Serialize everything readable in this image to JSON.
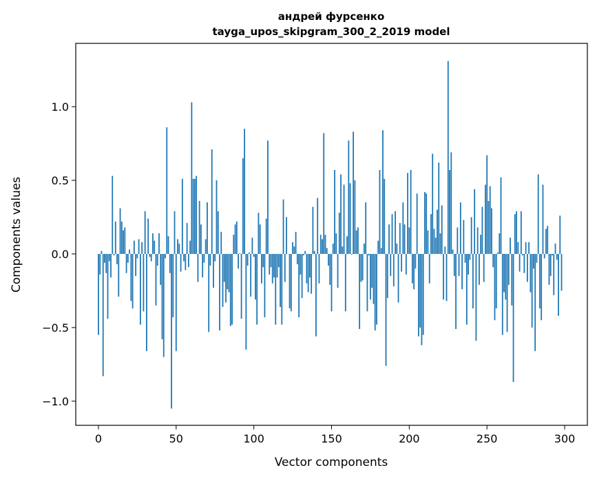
{
  "chart_data": {
    "type": "bar",
    "title": [
      "андрей фурсенко",
      "tayga_upos_skipgram_300_2_2019 model"
    ],
    "xlabel": "Vector components",
    "ylabel": "Components values",
    "xlim": [
      -14.6,
      314.6
    ],
    "ylim": [
      -1.164,
      1.43
    ],
    "xticks": [
      0,
      50,
      100,
      150,
      200,
      250,
      300
    ],
    "xtick_labels": [
      "0",
      "50",
      "100",
      "150",
      "200",
      "250",
      "300"
    ],
    "yticks": [
      -1.0,
      -0.5,
      0.0,
      0.5,
      1.0
    ],
    "ytick_labels": [
      "−1.0",
      "−0.5",
      "0.0",
      "0.5",
      "1.0"
    ],
    "grid": false,
    "color": "#1f77b4",
    "values": [
      -0.55,
      -0.14,
      0.02,
      -0.83,
      -0.06,
      -0.13,
      -0.44,
      -0.05,
      -0.16,
      0.53,
      -0.01,
      0.22,
      -0.07,
      -0.29,
      0.31,
      0.22,
      0.16,
      0.18,
      -0.13,
      -0.06,
      0.03,
      -0.32,
      -0.37,
      0.09,
      -0.15,
      -0.03,
      0.1,
      -0.48,
      0.08,
      -0.39,
      0.29,
      -0.66,
      0.24,
      -0.02,
      -0.05,
      0.14,
      0.09,
      -0.35,
      -0.08,
      0.14,
      -0.21,
      -0.58,
      -0.7,
      -0.03,
      0.86,
      0.12,
      -0.13,
      -1.05,
      -0.43,
      0.29,
      -0.66,
      0.1,
      0.07,
      -0.12,
      0.51,
      -0.05,
      -0.11,
      0.21,
      -0.09,
      0.09,
      1.03,
      0.51,
      0.51,
      0.53,
      -0.19,
      0.36,
      0.2,
      -0.16,
      -0.06,
      0.1,
      0.35,
      -0.53,
      -0.08,
      0.71,
      -0.23,
      -0.05,
      0.5,
      0.29,
      -0.52,
      0.15,
      -0.36,
      -0.19,
      -0.33,
      -0.24,
      -0.26,
      -0.49,
      -0.48,
      0.13,
      0.2,
      0.22,
      -0.1,
      0.005,
      -0.44,
      0.65,
      0.85,
      -0.65,
      -0.08,
      0.01,
      -0.29,
      0.11,
      -0.02,
      -0.31,
      -0.48,
      0.28,
      0.2,
      -0.2,
      -0.09,
      -0.43,
      0.24,
      0.77,
      -0.14,
      -0.09,
      -0.2,
      -0.16,
      -0.48,
      -0.16,
      -0.09,
      -0.36,
      -0.48,
      0.37,
      -0.19,
      0.25,
      0.0,
      -0.37,
      -0.39,
      0.08,
      0.05,
      0.15,
      -0.07,
      -0.43,
      -0.14,
      -0.3,
      -0.01,
      0.02,
      -0.2,
      -0.26,
      -0.16,
      -0.27,
      0.32,
      0.02,
      -0.56,
      0.38,
      -0.2,
      0.13,
      0.1,
      0.82,
      0.13,
      0.04,
      -0.08,
      -0.21,
      -0.39,
      0.07,
      0.57,
      0.14,
      -0.23,
      0.28,
      0.54,
      0.05,
      0.47,
      -0.39,
      0.12,
      0.77,
      0.48,
      -0.005,
      0.83,
      0.5,
      0.16,
      0.18,
      -0.51,
      -0.19,
      -0.18,
      0.07,
      0.35,
      -0.39,
      -0.01,
      -0.31,
      -0.23,
      -0.34,
      -0.52,
      -0.48,
      0.09,
      0.57,
      0.04,
      0.84,
      0.51,
      -0.76,
      -0.3,
      0.2,
      -0.15,
      0.27,
      -0.22,
      0.29,
      0.07,
      -0.33,
      0.21,
      -0.12,
      0.35,
      0.2,
      -0.14,
      0.55,
      0.18,
      0.57,
      -0.2,
      -0.24,
      -0.1,
      0.41,
      -0.56,
      -0.5,
      -0.62,
      -0.55,
      0.42,
      0.41,
      0.16,
      -0.2,
      0.27,
      0.68,
      0.17,
      0.11,
      0.3,
      0.62,
      0.14,
      0.33,
      -0.31,
      0.05,
      -0.32,
      1.31,
      0.57,
      0.69,
      0.03,
      -0.15,
      -0.51,
      0.18,
      -0.15,
      0.35,
      -0.24,
      0.23,
      -0.06,
      -0.48,
      -0.14,
      -0.04,
      0.25,
      -0.37,
      0.44,
      -0.59,
      0.18,
      -0.21,
      0.13,
      0.32,
      -0.19,
      0.47,
      0.67,
      0.36,
      0.46,
      0.31,
      -0.09,
      -0.45,
      -0.37,
      0.01,
      0.14,
      0.52,
      -0.55,
      -0.26,
      -0.31,
      -0.53,
      -0.21,
      0.11,
      -0.35,
      -0.87,
      0.27,
      0.29,
      0.08,
      -0.12,
      0.29,
      -0.01,
      -0.13,
      0.08,
      -0.19,
      0.08,
      -0.26,
      -0.5,
      -0.1,
      -0.66,
      -0.06,
      0.54,
      -0.37,
      -0.45,
      0.47,
      -0.03,
      0.17,
      0.19,
      -0.21,
      -0.15,
      -0.01,
      -0.28,
      0.07,
      -0.04,
      -0.42,
      0.26,
      -0.25
    ]
  }
}
